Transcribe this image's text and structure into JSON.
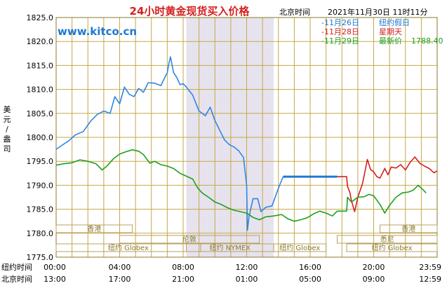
{
  "chart_data": {
    "type": "line",
    "title": "24小时黄金现货买入价格",
    "timezone_label": "北京时间",
    "timestamp": "2021年11月30日 11时11分",
    "watermark": "www.kitco.cn",
    "ylabel": "美元/盎司",
    "ylim": [
      1775.0,
      1825.0
    ],
    "y_ticks": [
      "1775.0",
      "1780.0",
      "1785.0",
      "1790.0",
      "1795.0",
      "1800.0",
      "1805.0",
      "1810.0",
      "1815.0",
      "1820.0",
      "1825.0"
    ],
    "x_row1_label": "纽约时间",
    "x_row1_ticks": [
      "00:00",
      "04:00",
      "08:00",
      "12:00",
      "16:00",
      "20:00",
      "23:59"
    ],
    "x_row2_label": "北京时间",
    "x_row2_ticks": [
      "13:00",
      "17:00",
      "21:00",
      "01:00",
      "05:00",
      "09:00",
      "12:59"
    ],
    "x_hours": [
      0,
      4,
      8,
      12,
      16,
      20,
      24
    ],
    "shaded_hours": [
      8.2,
      13.7
    ],
    "grid": true,
    "legend_position": "top-right",
    "legend": [
      {
        "text": "-11月26日",
        "note": "纽约假日",
        "color": "#1e78d2"
      },
      {
        "text": "-11月28日",
        "note": "星期天",
        "color": "#d21e1e"
      },
      {
        "text": "-11月29日",
        "note": "最新价",
        "value": "1788.40",
        "color": "#1ea01e"
      }
    ],
    "series": [
      {
        "legend": "-11月26日",
        "color": "#2f86e6",
        "points": [
          [
            0,
            1797.5
          ],
          [
            0.4,
            1798.4
          ],
          [
            0.8,
            1799.3
          ],
          [
            1.2,
            1800.5
          ],
          [
            1.7,
            1801.2
          ],
          [
            2.2,
            1803.5
          ],
          [
            2.6,
            1804.8
          ],
          [
            3.0,
            1805.5
          ],
          [
            3.4,
            1805.0
          ],
          [
            3.7,
            1808.5
          ],
          [
            4.0,
            1807.0
          ],
          [
            4.3,
            1810.5
          ],
          [
            4.6,
            1809.0
          ],
          [
            4.9,
            1808.5
          ],
          [
            5.2,
            1810.2
          ],
          [
            5.5,
            1809.4
          ],
          [
            5.8,
            1811.4
          ],
          [
            6.2,
            1811.3
          ],
          [
            6.6,
            1810.8
          ],
          [
            6.8,
            1812.2
          ],
          [
            7.0,
            1813.5
          ],
          [
            7.1,
            1815.4
          ],
          [
            7.2,
            1816.8
          ],
          [
            7.4,
            1813.5
          ],
          [
            7.6,
            1812.5
          ],
          [
            7.8,
            1811.0
          ],
          [
            8.0,
            1811.2
          ],
          [
            8.2,
            1810.5
          ],
          [
            8.6,
            1808.8
          ],
          [
            9.0,
            1805.5
          ],
          [
            9.4,
            1804.5
          ],
          [
            9.7,
            1806.3
          ],
          [
            10.0,
            1803.5
          ],
          [
            10.3,
            1801.5
          ],
          [
            10.6,
            1799.5
          ],
          [
            10.9,
            1798.5
          ],
          [
            11.2,
            1798.0
          ],
          [
            11.5,
            1797.2
          ],
          [
            11.8,
            1795.8
          ],
          [
            12.0,
            1790.0
          ],
          [
            12.05,
            1780.6
          ],
          [
            12.15,
            1783.5
          ],
          [
            12.4,
            1787.2
          ],
          [
            12.7,
            1787.2
          ],
          [
            12.9,
            1784.5
          ],
          [
            13.2,
            1785.4
          ],
          [
            13.6,
            1785.7
          ],
          [
            13.9,
            1788.5
          ],
          [
            14.1,
            1790.2
          ],
          [
            14.3,
            1791.8
          ]
        ]
      },
      {
        "legend": "-11月26日 (flat)",
        "color": "#1e78d2",
        "points": [
          [
            14.3,
            1791.8
          ],
          [
            17.7,
            1791.8
          ]
        ]
      },
      {
        "legend": "-11月28日",
        "color": "#d42020",
        "points": [
          [
            17.7,
            1791.8
          ],
          [
            18.3,
            1791.8
          ],
          [
            18.35,
            1789.8
          ],
          [
            18.5,
            1788.5
          ],
          [
            18.6,
            1786.8
          ],
          [
            18.8,
            1784.5
          ],
          [
            19.0,
            1787.5
          ],
          [
            19.3,
            1790.4
          ],
          [
            19.6,
            1795.4
          ],
          [
            19.8,
            1793.3
          ],
          [
            20.0,
            1792.8
          ],
          [
            20.2,
            1791.8
          ],
          [
            20.4,
            1791.5
          ],
          [
            20.7,
            1793.5
          ],
          [
            20.9,
            1792.2
          ],
          [
            21.1,
            1793.8
          ],
          [
            21.4,
            1793.6
          ],
          [
            21.7,
            1794.3
          ],
          [
            22.0,
            1793.2
          ],
          [
            22.3,
            1794.8
          ],
          [
            22.6,
            1795.9
          ],
          [
            22.9,
            1794.6
          ],
          [
            23.2,
            1794.0
          ],
          [
            23.5,
            1793.5
          ],
          [
            23.8,
            1792.6
          ],
          [
            24.0,
            1793.0
          ]
        ]
      },
      {
        "legend": "-11月29日",
        "color": "#1ea01e",
        "points": [
          [
            0,
            1794.2
          ],
          [
            0.5,
            1794.5
          ],
          [
            1.0,
            1794.7
          ],
          [
            1.5,
            1795.3
          ],
          [
            2.0,
            1795.0
          ],
          [
            2.5,
            1794.5
          ],
          [
            2.9,
            1793.2
          ],
          [
            3.2,
            1794.0
          ],
          [
            3.6,
            1795.5
          ],
          [
            4.0,
            1796.5
          ],
          [
            4.4,
            1797.0
          ],
          [
            4.8,
            1797.4
          ],
          [
            5.2,
            1797.1
          ],
          [
            5.5,
            1796.4
          ],
          [
            5.9,
            1794.6
          ],
          [
            6.2,
            1795.0
          ],
          [
            6.6,
            1794.3
          ],
          [
            7.0,
            1794.0
          ],
          [
            7.4,
            1793.5
          ],
          [
            7.8,
            1792.5
          ],
          [
            8.2,
            1791.9
          ],
          [
            8.6,
            1791.3
          ],
          [
            8.9,
            1789.5
          ],
          [
            9.2,
            1788.4
          ],
          [
            9.6,
            1787.5
          ],
          [
            10.0,
            1786.5
          ],
          [
            10.4,
            1786.0
          ],
          [
            10.8,
            1785.3
          ],
          [
            11.2,
            1784.8
          ],
          [
            11.6,
            1784.5
          ],
          [
            12.0,
            1784.2
          ],
          [
            12.4,
            1783.3
          ],
          [
            12.8,
            1782.8
          ],
          [
            13.2,
            1783.4
          ],
          [
            13.7,
            1783.6
          ],
          [
            14.2,
            1783.9
          ],
          [
            14.6,
            1783.0
          ],
          [
            15.0,
            1782.5
          ],
          [
            15.4,
            1782.8
          ],
          [
            15.8,
            1783.2
          ],
          [
            16.2,
            1784.0
          ],
          [
            16.6,
            1784.6
          ],
          [
            17.0,
            1784.2
          ],
          [
            17.4,
            1783.6
          ],
          [
            17.7,
            1784.6
          ],
          [
            18.3,
            1784.6
          ],
          [
            18.35,
            1787.5
          ],
          [
            18.6,
            1786.5
          ],
          [
            19.0,
            1787.5
          ],
          [
            19.4,
            1787.6
          ],
          [
            19.7,
            1788.1
          ],
          [
            20.0,
            1787.8
          ],
          [
            20.4,
            1786.0
          ],
          [
            20.7,
            1784.2
          ],
          [
            21.0,
            1785.8
          ],
          [
            21.4,
            1787.5
          ],
          [
            21.8,
            1788.4
          ],
          [
            22.2,
            1788.6
          ],
          [
            22.5,
            1789.0
          ],
          [
            22.8,
            1790.0
          ],
          [
            23.1,
            1789.1
          ],
          [
            23.3,
            1788.4
          ]
        ]
      }
    ],
    "market_sessions": [
      {
        "label": "香港",
        "start": 0,
        "end": 4.8
      },
      {
        "label": "香港",
        "start": 20.4,
        "end": 24
      },
      {
        "label": "伦敦",
        "start": 4.0,
        "end": 12.8
      },
      {
        "label": "悉尼",
        "start": 17.7,
        "end": 24
      },
      {
        "label": "纽约 Globex",
        "start": 0,
        "end": 9.1
      },
      {
        "label": "纽约 NYMEX",
        "start": 8.2,
        "end": 13.7
      },
      {
        "label": "纽约 Globex",
        "start": 13.7,
        "end": 17.0
      },
      {
        "label": "纽约 Globex",
        "start": 18.3,
        "end": 24
      }
    ]
  }
}
